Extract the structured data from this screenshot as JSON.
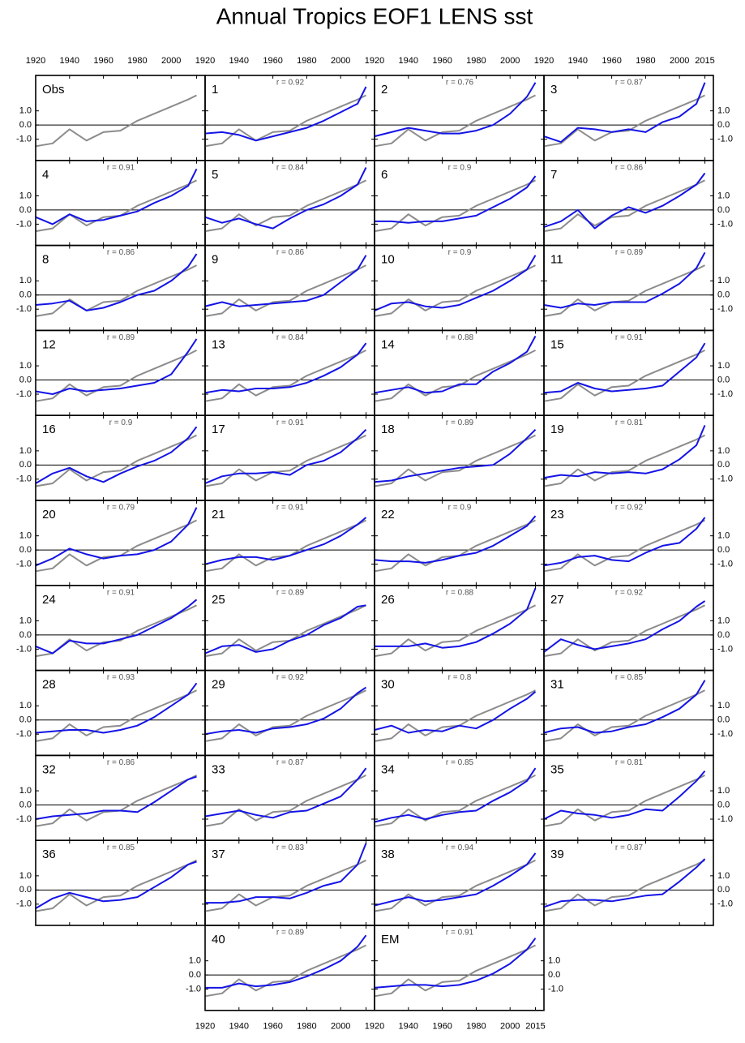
{
  "chart_data": {
    "type": "line",
    "title": "Annual Tropics EOF1 LENS sst",
    "x": [
      1920,
      1930,
      1940,
      1950,
      1960,
      1970,
      1980,
      1990,
      2000,
      2010,
      2015
    ],
    "xlim": [
      1920,
      2020
    ],
    "xticks": [
      1920,
      1940,
      1960,
      1980,
      2000,
      2015
    ],
    "ylim": [
      -2.5,
      3.5
    ],
    "yticks": [
      {
        "value": 1,
        "label": "1.0"
      },
      {
        "value": 0,
        "label": "0.0"
      },
      {
        "value": -1,
        "label": "-1.0"
      }
    ],
    "reference_line": 0,
    "obs": {
      "color": "#8c8c8c",
      "values": [
        -1.5,
        -1.3,
        -0.3,
        -1.1,
        -0.5,
        -0.4,
        0.3,
        0.8,
        1.3,
        1.8,
        2.1
      ]
    },
    "color": "#1414e6",
    "panels": [
      {
        "label": "Obs"
      },
      {
        "label": "1",
        "r": "r = 0.92",
        "values": [
          -0.6,
          -0.5,
          -0.7,
          -1.1,
          -0.8,
          -0.5,
          -0.2,
          0.3,
          0.9,
          1.5,
          2.7
        ]
      },
      {
        "label": "2",
        "r": "r = 0.76",
        "values": [
          -0.8,
          -0.5,
          -0.2,
          -0.4,
          -0.6,
          -0.6,
          -0.4,
          0.0,
          0.8,
          2.0,
          3.0
        ]
      },
      {
        "label": "3",
        "r": "r = 0.87",
        "values": [
          -0.8,
          -1.2,
          -0.2,
          -0.3,
          -0.5,
          -0.3,
          -0.5,
          0.2,
          0.6,
          1.5,
          3.0
        ]
      },
      {
        "label": "4",
        "r": "r = 0.91",
        "values": [
          -0.5,
          -1.0,
          -0.3,
          -0.8,
          -0.7,
          -0.4,
          -0.1,
          0.5,
          1.0,
          1.7,
          2.9
        ]
      },
      {
        "label": "5",
        "r": "r = 0.84",
        "values": [
          -0.5,
          -0.9,
          -0.6,
          -1.0,
          -1.3,
          -0.6,
          0.0,
          0.4,
          1.0,
          1.8,
          3.0
        ]
      },
      {
        "label": "6",
        "r": "r = 0.9",
        "values": [
          -0.8,
          -0.8,
          -0.9,
          -0.8,
          -0.8,
          -0.6,
          -0.4,
          0.2,
          0.8,
          1.6,
          2.4
        ]
      },
      {
        "label": "7",
        "r": "r = 0.86",
        "values": [
          -1.2,
          -0.8,
          0.0,
          -1.3,
          -0.4,
          0.2,
          -0.2,
          0.3,
          1.0,
          1.8,
          2.6
        ]
      },
      {
        "label": "8",
        "r": "r = 0.86",
        "values": [
          -0.7,
          -0.6,
          -0.4,
          -1.1,
          -0.9,
          -0.5,
          0.0,
          0.3,
          1.0,
          2.0,
          2.9
        ]
      },
      {
        "label": "9",
        "r": "r = 0.86",
        "values": [
          -0.8,
          -0.5,
          -0.8,
          -0.7,
          -0.6,
          -0.5,
          -0.4,
          0.0,
          0.9,
          1.8,
          2.8
        ]
      },
      {
        "label": "10",
        "r": "r = 0.9",
        "values": [
          -1.1,
          -0.6,
          -0.5,
          -0.8,
          -0.9,
          -0.7,
          -0.2,
          0.3,
          1.0,
          1.8,
          2.8
        ]
      },
      {
        "label": "11",
        "r": "r = 0.89",
        "values": [
          -0.7,
          -0.9,
          -0.6,
          -0.7,
          -0.5,
          -0.5,
          -0.5,
          0.1,
          0.8,
          1.9,
          3.0
        ]
      },
      {
        "label": "12",
        "r": "r = 0.89",
        "values": [
          -0.8,
          -1.0,
          -0.6,
          -0.8,
          -0.7,
          -0.6,
          -0.4,
          -0.2,
          0.4,
          2.0,
          2.9
        ]
      },
      {
        "label": "13",
        "r": "r = 0.84",
        "values": [
          -0.9,
          -0.7,
          -0.8,
          -0.6,
          -0.6,
          -0.5,
          -0.2,
          0.3,
          0.9,
          1.8,
          2.6
        ]
      },
      {
        "label": "14",
        "r": "r = 0.88",
        "values": [
          -0.9,
          -0.7,
          -0.5,
          -0.9,
          -0.8,
          -0.3,
          -0.3,
          0.6,
          1.2,
          2.0,
          3.1
        ]
      },
      {
        "label": "15",
        "r": "r = 0.91",
        "values": [
          -0.9,
          -0.8,
          -0.2,
          -0.6,
          -0.8,
          -0.7,
          -0.6,
          -0.4,
          0.6,
          1.6,
          2.6
        ]
      },
      {
        "label": "16",
        "r": "r = 0.9",
        "values": [
          -1.3,
          -0.6,
          -0.2,
          -0.8,
          -1.2,
          -0.6,
          -0.1,
          0.3,
          0.9,
          1.9,
          2.7
        ]
      },
      {
        "label": "17",
        "r": "r = 0.91",
        "values": [
          -1.3,
          -0.8,
          -0.6,
          -0.6,
          -0.5,
          -0.7,
          0.0,
          0.3,
          0.9,
          1.9,
          2.5
        ]
      },
      {
        "label": "18",
        "r": "r = 0.89",
        "values": [
          -1.2,
          -1.1,
          -0.8,
          -0.6,
          -0.4,
          -0.2,
          -0.1,
          0.0,
          0.8,
          1.9,
          2.5
        ]
      },
      {
        "label": "19",
        "r": "r = 0.81",
        "values": [
          -0.9,
          -0.7,
          -0.8,
          -0.5,
          -0.6,
          -0.5,
          -0.6,
          -0.3,
          0.4,
          1.4,
          2.8
        ]
      },
      {
        "label": "20",
        "r": "r = 0.79",
        "values": [
          -1.1,
          -0.6,
          0.1,
          -0.3,
          -0.6,
          -0.4,
          -0.3,
          0.0,
          0.6,
          1.8,
          3.0
        ]
      },
      {
        "label": "21",
        "r": "r = 0.91",
        "values": [
          -1.0,
          -0.7,
          -0.5,
          -0.5,
          -0.7,
          -0.4,
          0.0,
          0.4,
          1.0,
          1.8,
          2.3
        ]
      },
      {
        "label": "22",
        "r": "r = 0.9",
        "values": [
          -0.7,
          -0.8,
          -0.8,
          -0.9,
          -0.7,
          -0.4,
          -0.2,
          0.3,
          1.0,
          1.7,
          2.4
        ]
      },
      {
        "label": "23",
        "r": "r = 0.92",
        "values": [
          -1.1,
          -0.9,
          -0.5,
          -0.4,
          -0.7,
          -0.8,
          -0.2,
          0.3,
          0.5,
          1.5,
          2.3
        ]
      },
      {
        "label": "24",
        "r": "r = 0.91",
        "values": [
          -0.8,
          -1.3,
          -0.4,
          -0.6,
          -0.6,
          -0.3,
          0.0,
          0.6,
          1.2,
          2.0,
          2.5
        ]
      },
      {
        "label": "25",
        "r": "r = 0.89",
        "values": [
          -1.3,
          -0.8,
          -0.7,
          -1.2,
          -1.0,
          -0.4,
          0.0,
          0.7,
          1.2,
          2.0,
          2.1
        ]
      },
      {
        "label": "26",
        "r": "r = 0.88",
        "values": [
          -0.8,
          -0.8,
          -0.8,
          -0.6,
          -0.9,
          -0.8,
          -0.5,
          0.1,
          0.8,
          1.8,
          3.3
        ]
      },
      {
        "label": "27",
        "r": "r = 0.92",
        "values": [
          -1.2,
          -0.3,
          -0.7,
          -1.0,
          -0.8,
          -0.6,
          -0.3,
          0.4,
          1.0,
          2.0,
          2.4
        ]
      },
      {
        "label": "28",
        "r": "r = 0.93",
        "values": [
          -0.9,
          -0.8,
          -0.7,
          -0.7,
          -0.9,
          -0.7,
          -0.4,
          0.2,
          1.0,
          1.8,
          2.6
        ]
      },
      {
        "label": "29",
        "r": "r = 0.92",
        "values": [
          -1.0,
          -0.8,
          -0.7,
          -0.9,
          -0.6,
          -0.5,
          -0.3,
          0.1,
          0.8,
          1.9,
          2.3
        ]
      },
      {
        "label": "30",
        "r": "r = 0.8",
        "values": [
          -0.7,
          -0.4,
          -0.9,
          -0.7,
          -0.8,
          -0.4,
          -0.6,
          0.0,
          0.8,
          1.5,
          2.0
        ]
      },
      {
        "label": "31",
        "r": "r = 0.85",
        "values": [
          -0.9,
          -0.6,
          -0.5,
          -0.9,
          -0.8,
          -0.5,
          -0.3,
          0.2,
          0.8,
          1.8,
          2.8
        ]
      },
      {
        "label": "32",
        "r": "r = 0.86",
        "values": [
          -1.0,
          -0.8,
          -0.7,
          -0.6,
          -0.4,
          -0.4,
          -0.5,
          0.2,
          1.0,
          1.8,
          2.0
        ]
      },
      {
        "label": "33",
        "r": "r = 0.87",
        "values": [
          -0.8,
          -0.6,
          -0.4,
          -0.7,
          -0.9,
          -0.5,
          -0.4,
          0.1,
          0.6,
          1.8,
          2.6
        ]
      },
      {
        "label": "34",
        "r": "r = 0.85",
        "values": [
          -1.2,
          -0.9,
          -0.7,
          -1.0,
          -0.7,
          -0.5,
          -0.4,
          0.3,
          0.9,
          1.7,
          2.6
        ]
      },
      {
        "label": "35",
        "r": "r = 0.81",
        "values": [
          -1.0,
          -0.4,
          -0.6,
          -0.7,
          -0.9,
          -0.7,
          -0.3,
          -0.4,
          0.6,
          1.7,
          2.4
        ]
      },
      {
        "label": "36",
        "r": "r = 0.85",
        "values": [
          -1.3,
          -0.6,
          -0.2,
          -0.5,
          -0.8,
          -0.7,
          -0.5,
          0.2,
          0.9,
          1.8,
          2.0
        ]
      },
      {
        "label": "37",
        "r": "r = 0.83",
        "values": [
          -0.9,
          -0.9,
          -0.8,
          -0.5,
          -0.5,
          -0.6,
          -0.2,
          0.3,
          0.6,
          1.8,
          3.3
        ]
      },
      {
        "label": "38",
        "r": "r = 0.94",
        "values": [
          -1.1,
          -0.8,
          -0.5,
          -0.8,
          -0.7,
          -0.5,
          -0.3,
          0.3,
          1.0,
          1.8,
          2.6
        ]
      },
      {
        "label": "39",
        "r": "r = 0.87",
        "values": [
          -1.2,
          -0.8,
          -0.7,
          -0.7,
          -0.8,
          -0.6,
          -0.4,
          -0.3,
          0.6,
          1.6,
          2.2
        ]
      },
      {
        "label": "40",
        "r": "r = 0.89",
        "values": [
          -0.9,
          -0.9,
          -0.6,
          -0.8,
          -0.7,
          -0.5,
          -0.1,
          0.4,
          1.0,
          2.0,
          2.8
        ]
      },
      {
        "label": "EM",
        "r": "r = 0.91",
        "values": [
          -0.9,
          -0.8,
          -0.7,
          -0.7,
          -0.8,
          -0.7,
          -0.4,
          0.1,
          0.8,
          1.8,
          2.6
        ]
      }
    ]
  }
}
